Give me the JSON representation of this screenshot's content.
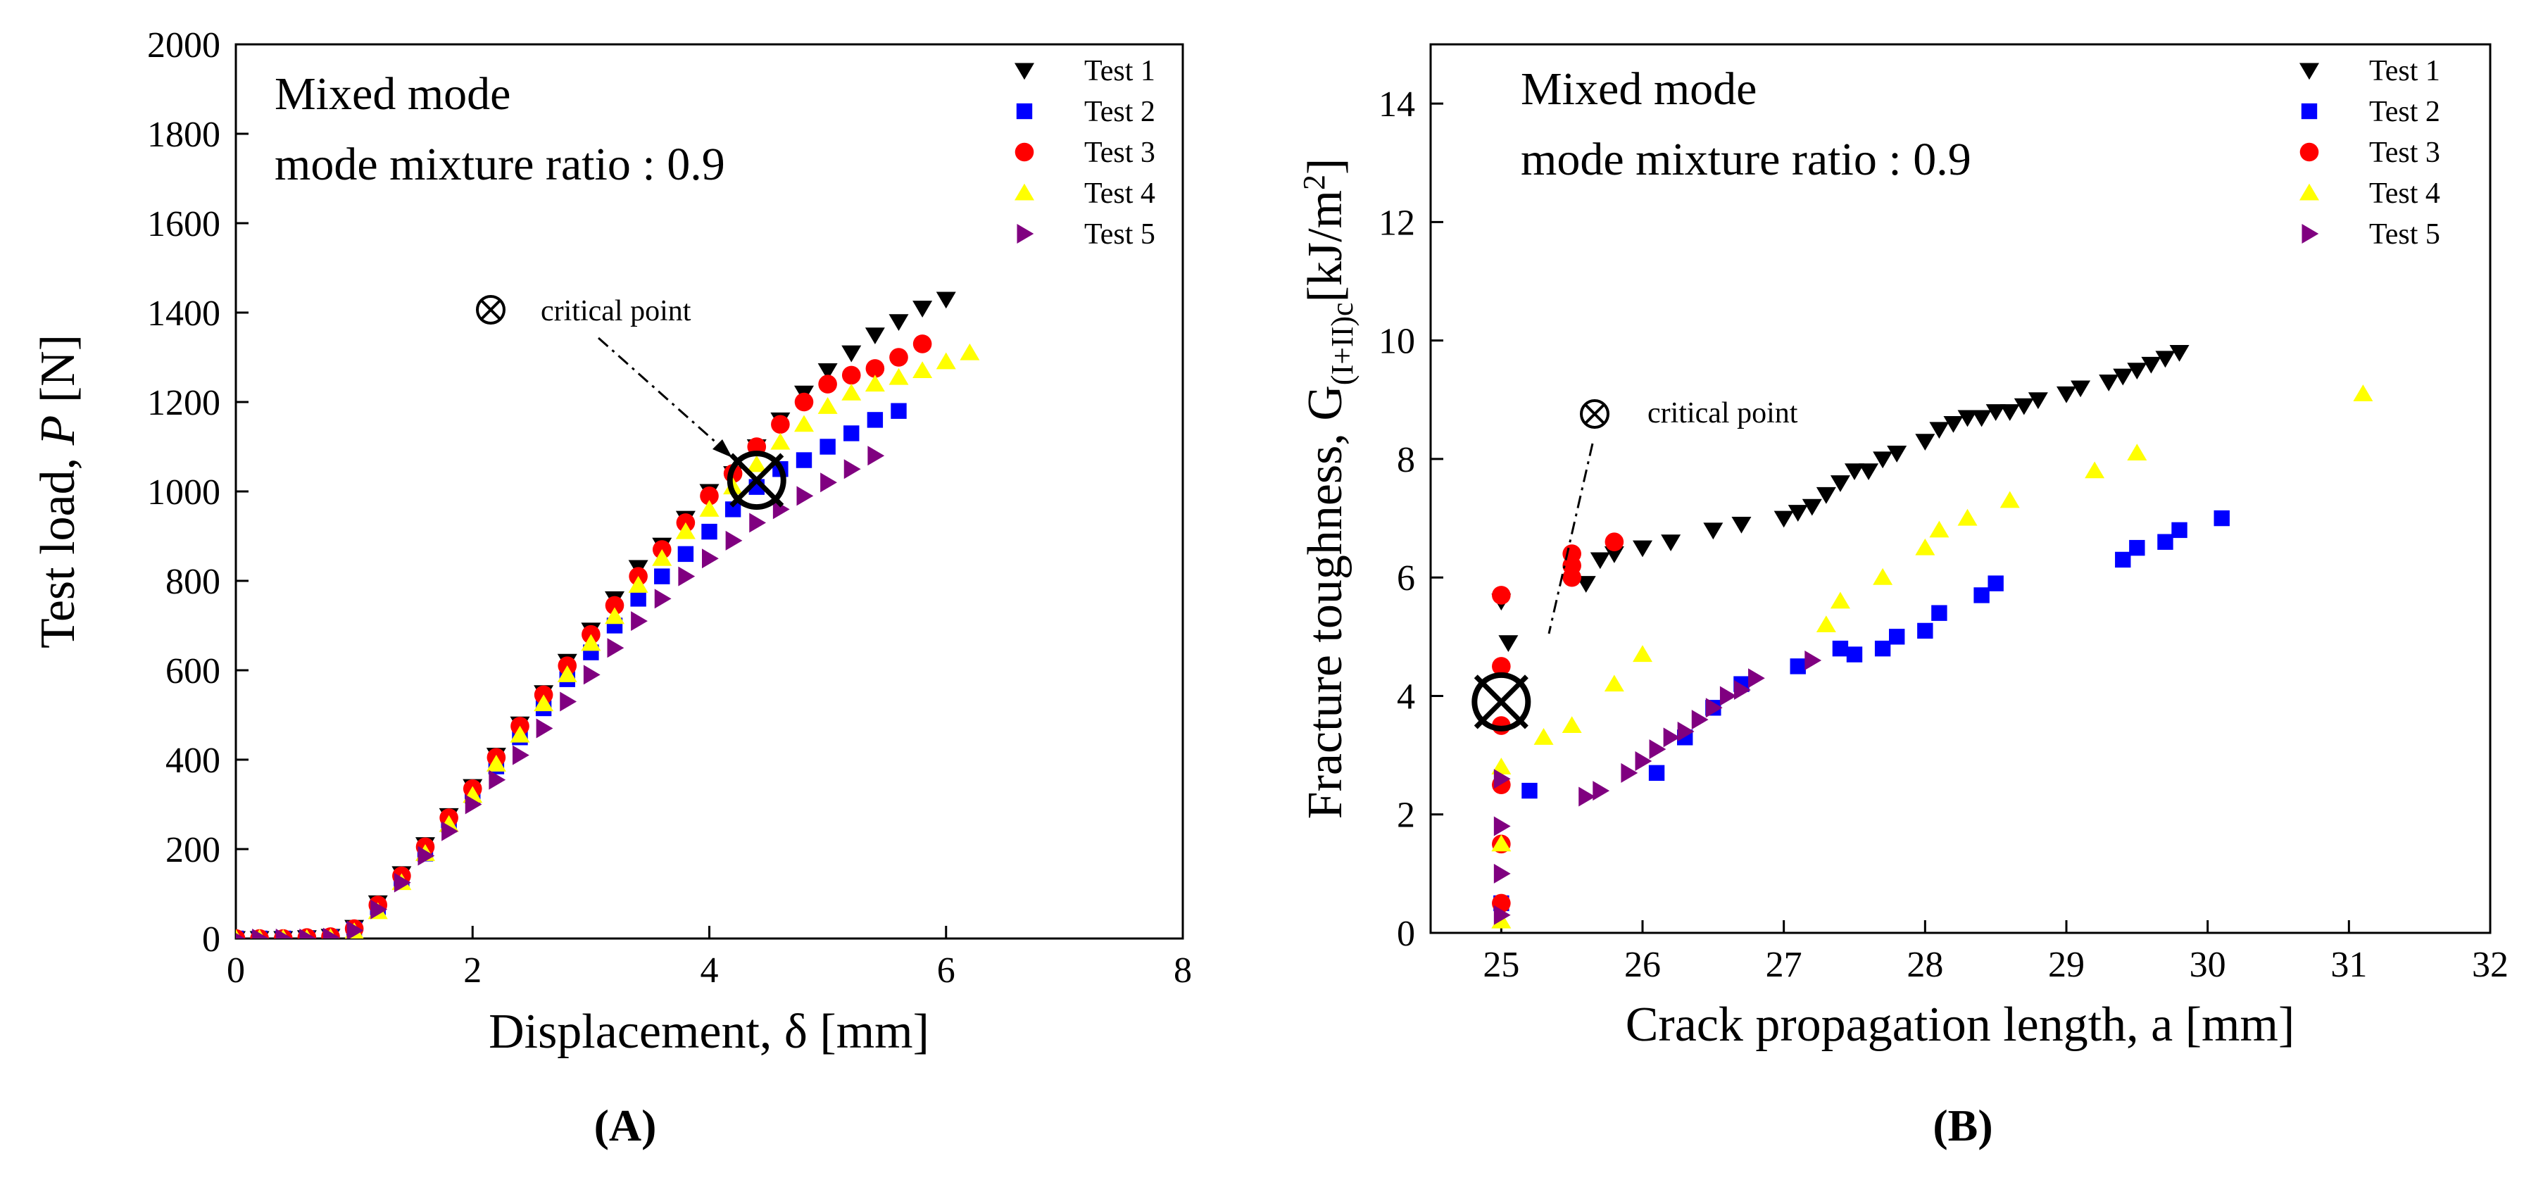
{
  "chart_data": [
    {
      "type": "scatter",
      "panel_label": "A",
      "ylabel_prefix": "Test load, ",
      "ylabel_symbol": "P",
      "ylabel_suffix": " [N]",
      "xlabel": "Displacement, δ [mm]",
      "xlim": [
        0,
        8
      ],
      "ylim": [
        0,
        2000
      ],
      "xticks": [
        0,
        2,
        4,
        6,
        8
      ],
      "yticks": [
        0,
        200,
        400,
        600,
        800,
        1000,
        1200,
        1400,
        1600,
        1800,
        2000
      ],
      "grid": false,
      "legend_position": "top-right",
      "annotation_line1": "Mixed mode",
      "annotation_line2": "mode mixture ratio : 0.9",
      "critical_label": "critical point",
      "critical_value": {
        "x": 4.4,
        "y": 1025
      },
      "series": [
        {
          "name": "Test 1",
          "marker": "triangle-down",
          "color": "#000000",
          "x": [
            0,
            0.2,
            0.4,
            0.6,
            0.8,
            1.0,
            1.2,
            1.4,
            1.6,
            1.8,
            2.0,
            2.2,
            2.4,
            2.6,
            2.8,
            3.0,
            3.2,
            3.4,
            3.6,
            3.8,
            4.0,
            4.2,
            4.4,
            4.6,
            4.8,
            5.0,
            5.2,
            5.4,
            5.6,
            5.8,
            6.0
          ],
          "y": [
            0,
            0,
            0,
            2,
            5,
            25,
            80,
            145,
            210,
            275,
            340,
            410,
            480,
            550,
            620,
            690,
            760,
            830,
            880,
            940,
            1000,
            1040,
            1100,
            1160,
            1220,
            1270,
            1310,
            1350,
            1380,
            1410,
            1430
          ]
        },
        {
          "name": "Test 2",
          "marker": "square",
          "color": "#0000ff",
          "x": [
            0,
            0.2,
            0.4,
            0.6,
            0.8,
            1.0,
            1.2,
            1.4,
            1.6,
            1.8,
            2.0,
            2.2,
            2.4,
            2.6,
            2.8,
            3.0,
            3.2,
            3.4,
            3.6,
            3.8,
            4.0,
            4.2,
            4.4,
            4.6,
            4.8,
            5.0,
            5.2,
            5.4,
            5.6
          ],
          "y": [
            0,
            0,
            0,
            0,
            3,
            20,
            70,
            130,
            190,
            255,
            320,
            385,
            450,
            515,
            580,
            640,
            700,
            760,
            810,
            860,
            910,
            960,
            1010,
            1050,
            1070,
            1100,
            1130,
            1160,
            1180
          ]
        },
        {
          "name": "Test 3",
          "marker": "circle",
          "color": "#ff0000",
          "x": [
            0,
            0.2,
            0.4,
            0.6,
            0.8,
            1.0,
            1.2,
            1.4,
            1.6,
            1.8,
            2.0,
            2.2,
            2.4,
            2.6,
            2.8,
            3.0,
            3.2,
            3.4,
            3.6,
            3.8,
            4.0,
            4.2,
            4.4,
            4.6,
            4.8,
            5.0,
            5.2,
            5.4,
            5.6,
            5.8
          ],
          "y": [
            0,
            0,
            0,
            2,
            4,
            22,
            75,
            140,
            205,
            270,
            335,
            405,
            475,
            545,
            610,
            680,
            745,
            810,
            870,
            930,
            990,
            1040,
            1100,
            1150,
            1200,
            1240,
            1260,
            1275,
            1300,
            1330
          ]
        },
        {
          "name": "Test 4",
          "marker": "triangle-up",
          "color": "#ffff00",
          "x": [
            0,
            0.2,
            0.4,
            0.6,
            0.8,
            1.0,
            1.2,
            1.4,
            1.6,
            1.8,
            2.0,
            2.2,
            2.4,
            2.6,
            2.8,
            3.0,
            3.2,
            3.4,
            3.6,
            3.8,
            4.0,
            4.2,
            4.4,
            4.6,
            4.8,
            5.0,
            5.2,
            5.4,
            5.6,
            5.8,
            6.0,
            6.2
          ],
          "y": [
            0,
            0,
            0,
            0,
            2,
            15,
            60,
            125,
            190,
            255,
            320,
            390,
            455,
            525,
            590,
            660,
            720,
            790,
            850,
            910,
            960,
            1010,
            1060,
            1110,
            1150,
            1190,
            1220,
            1240,
            1255,
            1270,
            1290,
            1310
          ]
        },
        {
          "name": "Test 5",
          "marker": "triangle-right",
          "color": "#800080",
          "x": [
            0,
            0.2,
            0.4,
            0.6,
            0.8,
            1.0,
            1.2,
            1.4,
            1.6,
            1.8,
            2.0,
            2.2,
            2.4,
            2.6,
            2.8,
            3.0,
            3.2,
            3.4,
            3.6,
            3.8,
            4.0,
            4.2,
            4.4,
            4.6,
            4.8,
            5.0,
            5.2,
            5.4
          ],
          "y": [
            0,
            0,
            0,
            0,
            2,
            18,
            65,
            125,
            185,
            240,
            300,
            355,
            410,
            470,
            530,
            590,
            650,
            710,
            760,
            810,
            850,
            890,
            930,
            960,
            990,
            1020,
            1050,
            1080
          ]
        }
      ]
    },
    {
      "type": "scatter",
      "panel_label": "B",
      "ylabel": "Fracture toughness, G(I+II)c[kJ/m2]",
      "xlabel": "Crack propagation length, a [mm]",
      "xlim": [
        24.5,
        32
      ],
      "ylim": [
        0,
        15
      ],
      "xticks": [
        25,
        26,
        27,
        28,
        29,
        30,
        31,
        32
      ],
      "yticks": [
        0,
        2,
        4,
        6,
        8,
        10,
        12,
        14
      ],
      "grid": false,
      "legend_position": "top-right",
      "annotation_line1": "Mixed mode",
      "annotation_line2": "mode mixture ratio : 0.9",
      "critical_label": "critical point",
      "critical_value": {
        "x": 25.0,
        "y": 3.9
      },
      "series": [
        {
          "name": "Test 1",
          "marker": "triangle-down",
          "color": "#000000",
          "x": [
            25.0,
            25.05,
            25.6,
            25.7,
            25.8,
            26.0,
            26.2,
            26.5,
            26.7,
            27.0,
            27.1,
            27.2,
            27.3,
            27.4,
            27.5,
            27.6,
            27.7,
            27.8,
            28.0,
            28.1,
            28.2,
            28.3,
            28.4,
            28.5,
            28.6,
            28.7,
            28.8,
            29.0,
            29.1,
            29.3,
            29.4,
            29.5,
            29.6,
            29.7,
            29.8
          ],
          "y": [
            5.6,
            4.9,
            5.9,
            6.3,
            6.4,
            6.5,
            6.6,
            6.8,
            6.9,
            7.0,
            7.1,
            7.2,
            7.4,
            7.6,
            7.8,
            7.8,
            8.0,
            8.1,
            8.3,
            8.5,
            8.6,
            8.7,
            8.7,
            8.8,
            8.8,
            8.9,
            9.0,
            9.1,
            9.2,
            9.3,
            9.4,
            9.5,
            9.6,
            9.7,
            9.8
          ]
        },
        {
          "name": "Test 2",
          "marker": "square",
          "color": "#0000ff",
          "x": [
            25.0,
            25.2,
            26.1,
            26.3,
            26.5,
            26.7,
            27.1,
            27.4,
            27.5,
            27.7,
            27.8,
            28.0,
            28.1,
            28.4,
            28.5,
            29.4,
            29.5,
            29.7,
            29.8,
            30.1
          ],
          "y": [
            0.5,
            2.4,
            2.7,
            3.3,
            3.8,
            4.2,
            4.5,
            4.8,
            4.7,
            4.8,
            5.0,
            5.1,
            5.4,
            5.7,
            5.9,
            6.3,
            6.5,
            6.6,
            6.8,
            7.0
          ]
        },
        {
          "name": "Test 3",
          "marker": "circle",
          "color": "#ff0000",
          "x": [
            25.0,
            25.0,
            25.0,
            25.0,
            25.0,
            25.0,
            25.5,
            25.5,
            25.5,
            25.8
          ],
          "y": [
            0.5,
            1.5,
            2.5,
            3.5,
            4.5,
            5.7,
            6.0,
            6.2,
            6.4,
            6.6
          ]
        },
        {
          "name": "Test 4",
          "marker": "triangle-up",
          "color": "#ffff00",
          "x": [
            25.0,
            25.0,
            25.0,
            25.3,
            25.5,
            25.8,
            26.0,
            27.3,
            27.4,
            27.7,
            28.0,
            28.1,
            28.3,
            28.6,
            29.2,
            29.5,
            31.1
          ],
          "y": [
            0.2,
            1.5,
            2.8,
            3.3,
            3.5,
            4.2,
            4.7,
            5.2,
            5.6,
            6.0,
            6.5,
            6.8,
            7.0,
            7.3,
            7.8,
            8.1,
            9.1
          ]
        },
        {
          "name": "Test 5",
          "marker": "triangle-right",
          "color": "#800080",
          "x": [
            25.0,
            25.0,
            25.0,
            25.0,
            25.6,
            25.7,
            25.9,
            26.0,
            26.1,
            26.2,
            26.3,
            26.4,
            26.5,
            26.6,
            26.7,
            26.8,
            27.2
          ],
          "y": [
            0.3,
            1.0,
            1.8,
            2.6,
            2.3,
            2.4,
            2.7,
            2.9,
            3.1,
            3.3,
            3.4,
            3.6,
            3.8,
            4.0,
            4.1,
            4.3,
            4.6
          ]
        }
      ]
    }
  ]
}
